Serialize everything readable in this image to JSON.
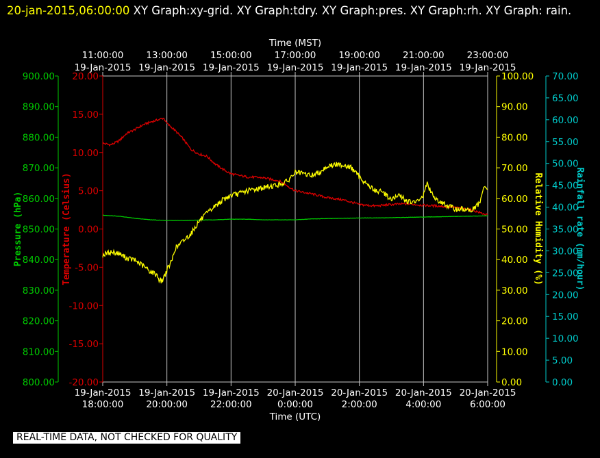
{
  "title": {
    "timestamp": "20-jan-2015,06:00:00",
    "graphs": "XY Graph:xy-grid.  XY Graph:tdry.  XY Graph:pres.  XY Graph:rh.  XY Graph: rain."
  },
  "footer": {
    "note": "REAL-TIME DATA, NOT CHECKED FOR QUALITY"
  },
  "colors": {
    "background": "#000000",
    "grid": "#c8c8c8",
    "temperature": "#dd0000",
    "pressure": "#00cc00",
    "humidity": "#ffff00",
    "rain": "#00cccc",
    "text": "#ffffff"
  },
  "chart_data": {
    "type": "line",
    "x_top": {
      "title": "Time (MST)",
      "ticks": [
        {
          "t": 0,
          "time": "11:00:00",
          "date": "19-Jan-2015"
        },
        {
          "t": 2,
          "time": "13:00:00",
          "date": "19-Jan-2015"
        },
        {
          "t": 4,
          "time": "15:00:00",
          "date": "19-Jan-2015"
        },
        {
          "t": 6,
          "time": "17:00:00",
          "date": "19-Jan-2015"
        },
        {
          "t": 8,
          "time": "19:00:00",
          "date": "19-Jan-2015"
        },
        {
          "t": 10,
          "time": "21:00:00",
          "date": "19-Jan-2015"
        },
        {
          "t": 12,
          "time": "23:00:00",
          "date": "19-Jan-2015"
        }
      ]
    },
    "x_bottom": {
      "title": "Time (UTC)",
      "range": [
        "19-Jan-2015 18:00:00",
        "20-Jan-2015 6:00:00"
      ],
      "ticks": [
        {
          "t": 0,
          "date": "19-Jan-2015",
          "time": "18:00:00"
        },
        {
          "t": 2,
          "date": "19-Jan-2015",
          "time": "20:00:00"
        },
        {
          "t": 4,
          "date": "19-Jan-2015",
          "time": "22:00:00"
        },
        {
          "t": 6,
          "date": "20-Jan-2015",
          "time": "0:00:00"
        },
        {
          "t": 8,
          "date": "20-Jan-2015",
          "time": "2:00:00"
        },
        {
          "t": 10,
          "date": "20-Jan-2015",
          "time": "4:00:00"
        },
        {
          "t": 12,
          "date": "20-Jan-2015",
          "time": "6:00:00"
        }
      ]
    },
    "axes": {
      "pressure": {
        "label": "Pressure (hPa)",
        "range": [
          800,
          900
        ],
        "ticks": [
          "800.00",
          "810.00",
          "820.00",
          "830.00",
          "840.00",
          "850.00",
          "860.00",
          "870.00",
          "880.00",
          "890.00",
          "900.00"
        ]
      },
      "temperature": {
        "label": "Temperature (Celsius)",
        "range": [
          -20,
          20
        ],
        "ticks": [
          "-20.00",
          "-15.00",
          "-10.00",
          "-5.00",
          "0.00",
          "5.00",
          "10.00",
          "15.00",
          "20.00"
        ]
      },
      "humidity": {
        "label": "Relative Humidity (%)",
        "range": [
          0,
          100
        ],
        "ticks": [
          "0.00",
          "10.00",
          "20.00",
          "30.00",
          "40.00",
          "50.00",
          "60.00",
          "70.00",
          "80.00",
          "90.00",
          "100.00"
        ]
      },
      "rain": {
        "label": "Rainfall rate (mm/hour)",
        "range": [
          0,
          70
        ],
        "ticks": [
          "0.00",
          "5.00",
          "10.00",
          "15.00",
          "20.00",
          "25.00",
          "30.00",
          "35.00",
          "40.00",
          "45.00",
          "50.00",
          "55.00",
          "60.00",
          "65.00",
          "70.00"
        ]
      }
    },
    "grid": "vertical",
    "series": [
      {
        "name": "tdry",
        "axis": "temperature",
        "x": [
          0,
          0.25,
          0.5,
          0.75,
          1.0,
          1.25,
          1.5,
          1.75,
          1.9,
          2.0,
          2.25,
          2.5,
          2.75,
          3.0,
          3.25,
          3.5,
          3.75,
          4.0,
          4.5,
          5.0,
          5.5,
          6.0,
          6.5,
          7.0,
          7.5,
          8.0,
          8.5,
          9.0,
          9.5,
          10.0,
          10.5,
          11.0,
          11.5,
          12.0
        ],
        "values": [
          11.2,
          11.0,
          11.5,
          12.5,
          13.0,
          13.6,
          14.0,
          14.3,
          14.5,
          13.8,
          12.9,
          11.8,
          10.4,
          9.8,
          9.5,
          8.5,
          7.8,
          7.2,
          6.8,
          6.7,
          6.3,
          5.0,
          4.6,
          4.1,
          3.8,
          3.2,
          3.0,
          3.2,
          3.3,
          3.1,
          3.0,
          2.8,
          2.5,
          1.8
        ]
      },
      {
        "name": "pres",
        "axis": "pressure",
        "x": [
          0,
          0.5,
          1.0,
          1.5,
          2.0,
          2.5,
          3.0,
          3.5,
          4.0,
          4.5,
          5.0,
          5.5,
          6.0,
          6.5,
          7.0,
          7.5,
          8.0,
          8.5,
          9.0,
          9.5,
          10.0,
          10.5,
          11.0,
          11.5,
          12.0
        ],
        "values": [
          854.5,
          854.2,
          853.5,
          853.0,
          852.8,
          852.8,
          852.9,
          853.0,
          853.2,
          853.2,
          853.0,
          853.0,
          853.0,
          853.3,
          853.4,
          853.5,
          853.6,
          853.6,
          853.7,
          853.8,
          853.9,
          854.0,
          854.1,
          854.2,
          854.3
        ]
      },
      {
        "name": "rh",
        "axis": "humidity",
        "x": [
          0,
          0.25,
          0.5,
          0.75,
          1.0,
          1.25,
          1.5,
          1.7,
          1.75,
          1.85,
          2.0,
          2.15,
          2.25,
          2.5,
          2.75,
          3.0,
          3.25,
          3.5,
          3.75,
          4.0,
          4.25,
          4.5,
          4.75,
          5.0,
          5.25,
          5.5,
          5.75,
          6.0,
          6.25,
          6.5,
          6.75,
          7.0,
          7.25,
          7.5,
          7.75,
          8.0,
          8.25,
          8.5,
          8.75,
          9.0,
          9.25,
          9.5,
          9.75,
          10.0,
          10.1,
          10.25,
          10.5,
          10.75,
          11.0,
          11.25,
          11.5,
          11.75,
          11.9,
          12.0
        ],
        "values": [
          41.5,
          42.5,
          42.0,
          40.5,
          39.8,
          38.0,
          36.0,
          35.0,
          33.5,
          33.0,
          36.5,
          39.5,
          43.5,
          46.0,
          48.5,
          52.5,
          55.0,
          57.5,
          59.5,
          61.0,
          61.5,
          62.5,
          63.0,
          63.5,
          64.0,
          64.5,
          65.5,
          68.5,
          68.0,
          67.5,
          68.5,
          70.5,
          71.0,
          71.0,
          70.0,
          67.0,
          64.5,
          62.5,
          62.0,
          59.5,
          61.0,
          59.0,
          58.5,
          61.0,
          65.0,
          61.5,
          59.0,
          57.5,
          56.5,
          56.5,
          56.0,
          58.5,
          64.0,
          62.5
        ]
      },
      {
        "name": "rain",
        "axis": "rain",
        "x": [],
        "values": []
      }
    ]
  }
}
